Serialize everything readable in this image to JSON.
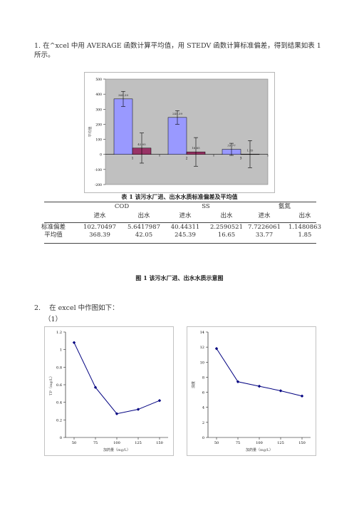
{
  "intro_text": "1. 在^xcel 中用 AVERAGE 函数计算平均值，用 STEDV 函数计算标准偏差，得到结果如表 1 所示。",
  "figure1": {
    "chart_data": {
      "type": "bar",
      "categories": [
        "1",
        "2",
        "3"
      ],
      "series": [
        {
          "values": [
            368.39,
            245.39,
            33.77
          ],
          "errors": [
            50,
            45,
            40
          ]
        },
        {
          "values": [
            42.05,
            16.65,
            1.85
          ],
          "errors": [
            100,
            95,
            90
          ]
        }
      ],
      "value_labels": [
        [
          "368.39",
          "42.05"
        ],
        [
          "245.39",
          "16.65"
        ],
        [
          "33.77",
          "1.85"
        ]
      ],
      "ylabel": "平均值",
      "ylim": [
        -200,
        500
      ],
      "yticks": [
        "-200",
        "-100",
        "0",
        "100",
        "200",
        "300",
        "400",
        "500"
      ],
      "colors": {
        "series1": "#9999ff",
        "series2": "#993366",
        "plot_bg": "#c0c0c0",
        "error": "#000000"
      }
    }
  },
  "table": {
    "title": "表 1 该污水厂进、出水水质标准偏差及平均值",
    "groups": [
      "COD",
      "SS",
      "氨氮"
    ],
    "subheaders": [
      "进水",
      "出水",
      "进水",
      "出水",
      "进水",
      "出水"
    ],
    "rows": [
      {
        "label": "标准偏差",
        "values": [
          "102.70497",
          "5.6417987",
          "40.44311",
          "2.2590521",
          "7.7226061",
          "1.1480863"
        ]
      },
      {
        "label": "平均值",
        "values": [
          "368.39",
          "42.05",
          "245.39",
          "16.65",
          "33.77",
          "1.85"
        ]
      }
    ]
  },
  "figure_caption": "图 1 该污水厂进、出水水质示意图",
  "item2": {
    "text": "2.    在 excel 中作图如下：",
    "sub": "（1）"
  },
  "charts": [
    {
      "chart_data": {
        "type": "line",
        "x": [
          50,
          75,
          100,
          125,
          150
        ],
        "y": [
          1.08,
          0.57,
          0.27,
          0.32,
          0.42
        ],
        "ylabel": "TP（mg/L）",
        "xlabel": "加药量（mg/L）",
        "ylim": [
          0,
          1.2
        ],
        "yticks": [
          "0",
          "0.2",
          "0.4",
          "0.6",
          "0.8",
          "1",
          "1.2"
        ],
        "xticks": [
          "50",
          "75",
          "100",
          "125",
          "150"
        ],
        "color": "#000080"
      }
    },
    {
      "chart_data": {
        "type": "line",
        "x": [
          50,
          75,
          100,
          125,
          150
        ],
        "y": [
          11.8,
          7.4,
          6.8,
          6.2,
          5.5
        ],
        "ylabel": "浊度",
        "xlabel": "加药量（mg/L）",
        "ylim": [
          0,
          14
        ],
        "yticks": [
          "0",
          "2",
          "4",
          "6",
          "8",
          "10",
          "12",
          "14"
        ],
        "xticks": [
          "50",
          "75",
          "100",
          "125",
          "150"
        ],
        "color": "#000080"
      }
    }
  ]
}
